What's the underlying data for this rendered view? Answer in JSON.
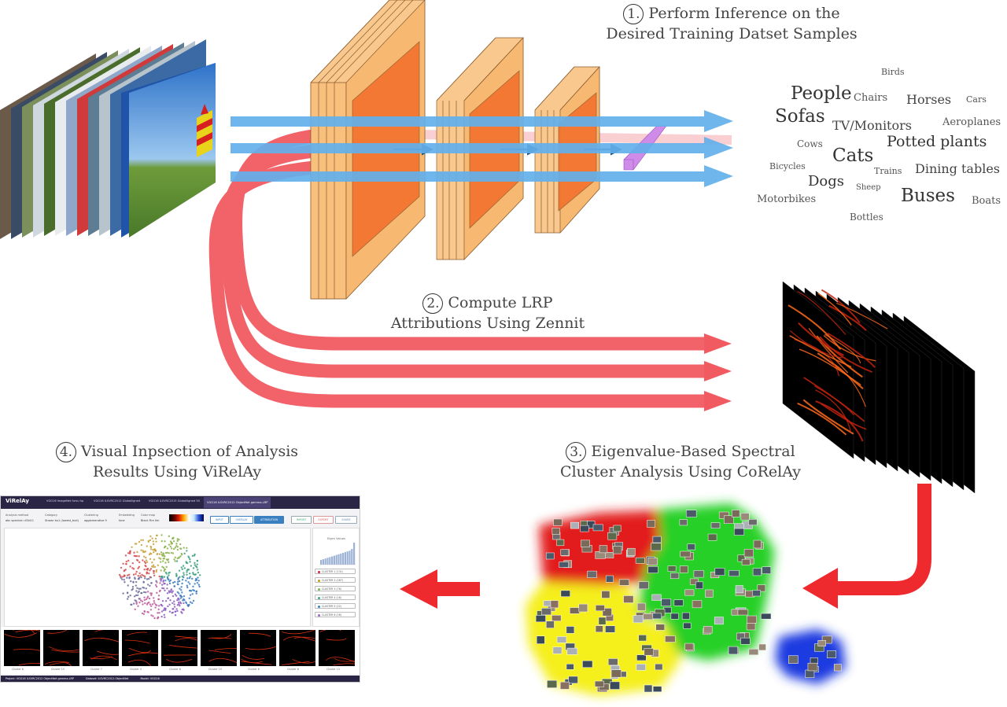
{
  "steps": {
    "s1": {
      "num": "1.",
      "line1": "Perform Inference on the",
      "line2": "Desired Training Datset Samples"
    },
    "s2": {
      "num": "2.",
      "line1": "Compute LRP",
      "line2": "Attributions Using Zennit"
    },
    "s3": {
      "num": "3.",
      "line1": "Eigenvalue-Based Spectral",
      "line2": "Cluster Analysis Using CoRelAy"
    },
    "s4": {
      "num": "4.",
      "line1": "Visual Inpsection of Analysis",
      "line2": "Results Using ViRelAy"
    }
  },
  "classes": [
    "Birds",
    "People",
    "Chairs",
    "Horses",
    "Cars",
    "Sofas",
    "TV/Monitors",
    "Aeroplanes",
    "Cows",
    "Potted plants",
    "Cats",
    "Bicycles",
    "Trains",
    "Dining tables",
    "Dogs",
    "Sheep",
    "Motorbikes",
    "Buses",
    "Boats",
    "Bottles"
  ],
  "app": {
    "brand": "ViRelAy",
    "tabs": [
      "VGG16 ImageNet fursu hp",
      "VGG16 ILSVRC2012 Globalligned",
      "VGG16 ILSVRC2015 Globalligned 50",
      "VGG16 ILSVRC2012 ObjectNet gamma-LRP"
    ],
    "controls": [
      {
        "label": "Analysis method",
        "value": "abc spectral r.03d11"
      },
      {
        "label": "Category",
        "value": "Strawr bu1 (lowest_bud)"
      },
      {
        "label": "Clustering",
        "value": "agglomerative 9"
      },
      {
        "label": "Embedding",
        "value": "tsne"
      },
      {
        "label": "Color map",
        "value": "Black Fire Ilm"
      }
    ],
    "view_buttons": [
      "INPUT",
      "OVERLAY",
      "ATTRIBUTION"
    ],
    "action_buttons": [
      "IMPORT",
      "EXPORT",
      "SHARE"
    ],
    "eigen_title": "Eigen Values",
    "cluster_buttons": [
      "CLUSTER 1 (131)",
      "CLUSTER 2 (287)",
      "CLUSTER 3 (76)",
      "CLUSTER 4 (16)",
      "CLUSTER 5 (22)",
      "CLUSTER 6 (26)"
    ],
    "thumb_labels": [
      "Cluster 6",
      "Cluster 15",
      "Cluster 7",
      "Cluster 4",
      "Cluster 6",
      "Cluster 15",
      "Cluster 6",
      "Cluster 6",
      "Cluster 15"
    ],
    "footer": {
      "project": "Project: VGG16 ILSVRC2012 ObjectNet gamma-LRP",
      "dataset": "Dataset: ILSVRC2012-ObjectNet",
      "model": "Model: VGG16"
    }
  },
  "colors": {
    "blue_arrow": "#63b0ec",
    "red_arrow": "#f25a62",
    "conv_face": "#f9c88f",
    "conv_inner": "#f2722e",
    "cluster_red": "#e21c1c",
    "cluster_green": "#27d027",
    "cluster_yellow": "#f5ef1a",
    "cluster_blue": "#1a3ae0"
  }
}
